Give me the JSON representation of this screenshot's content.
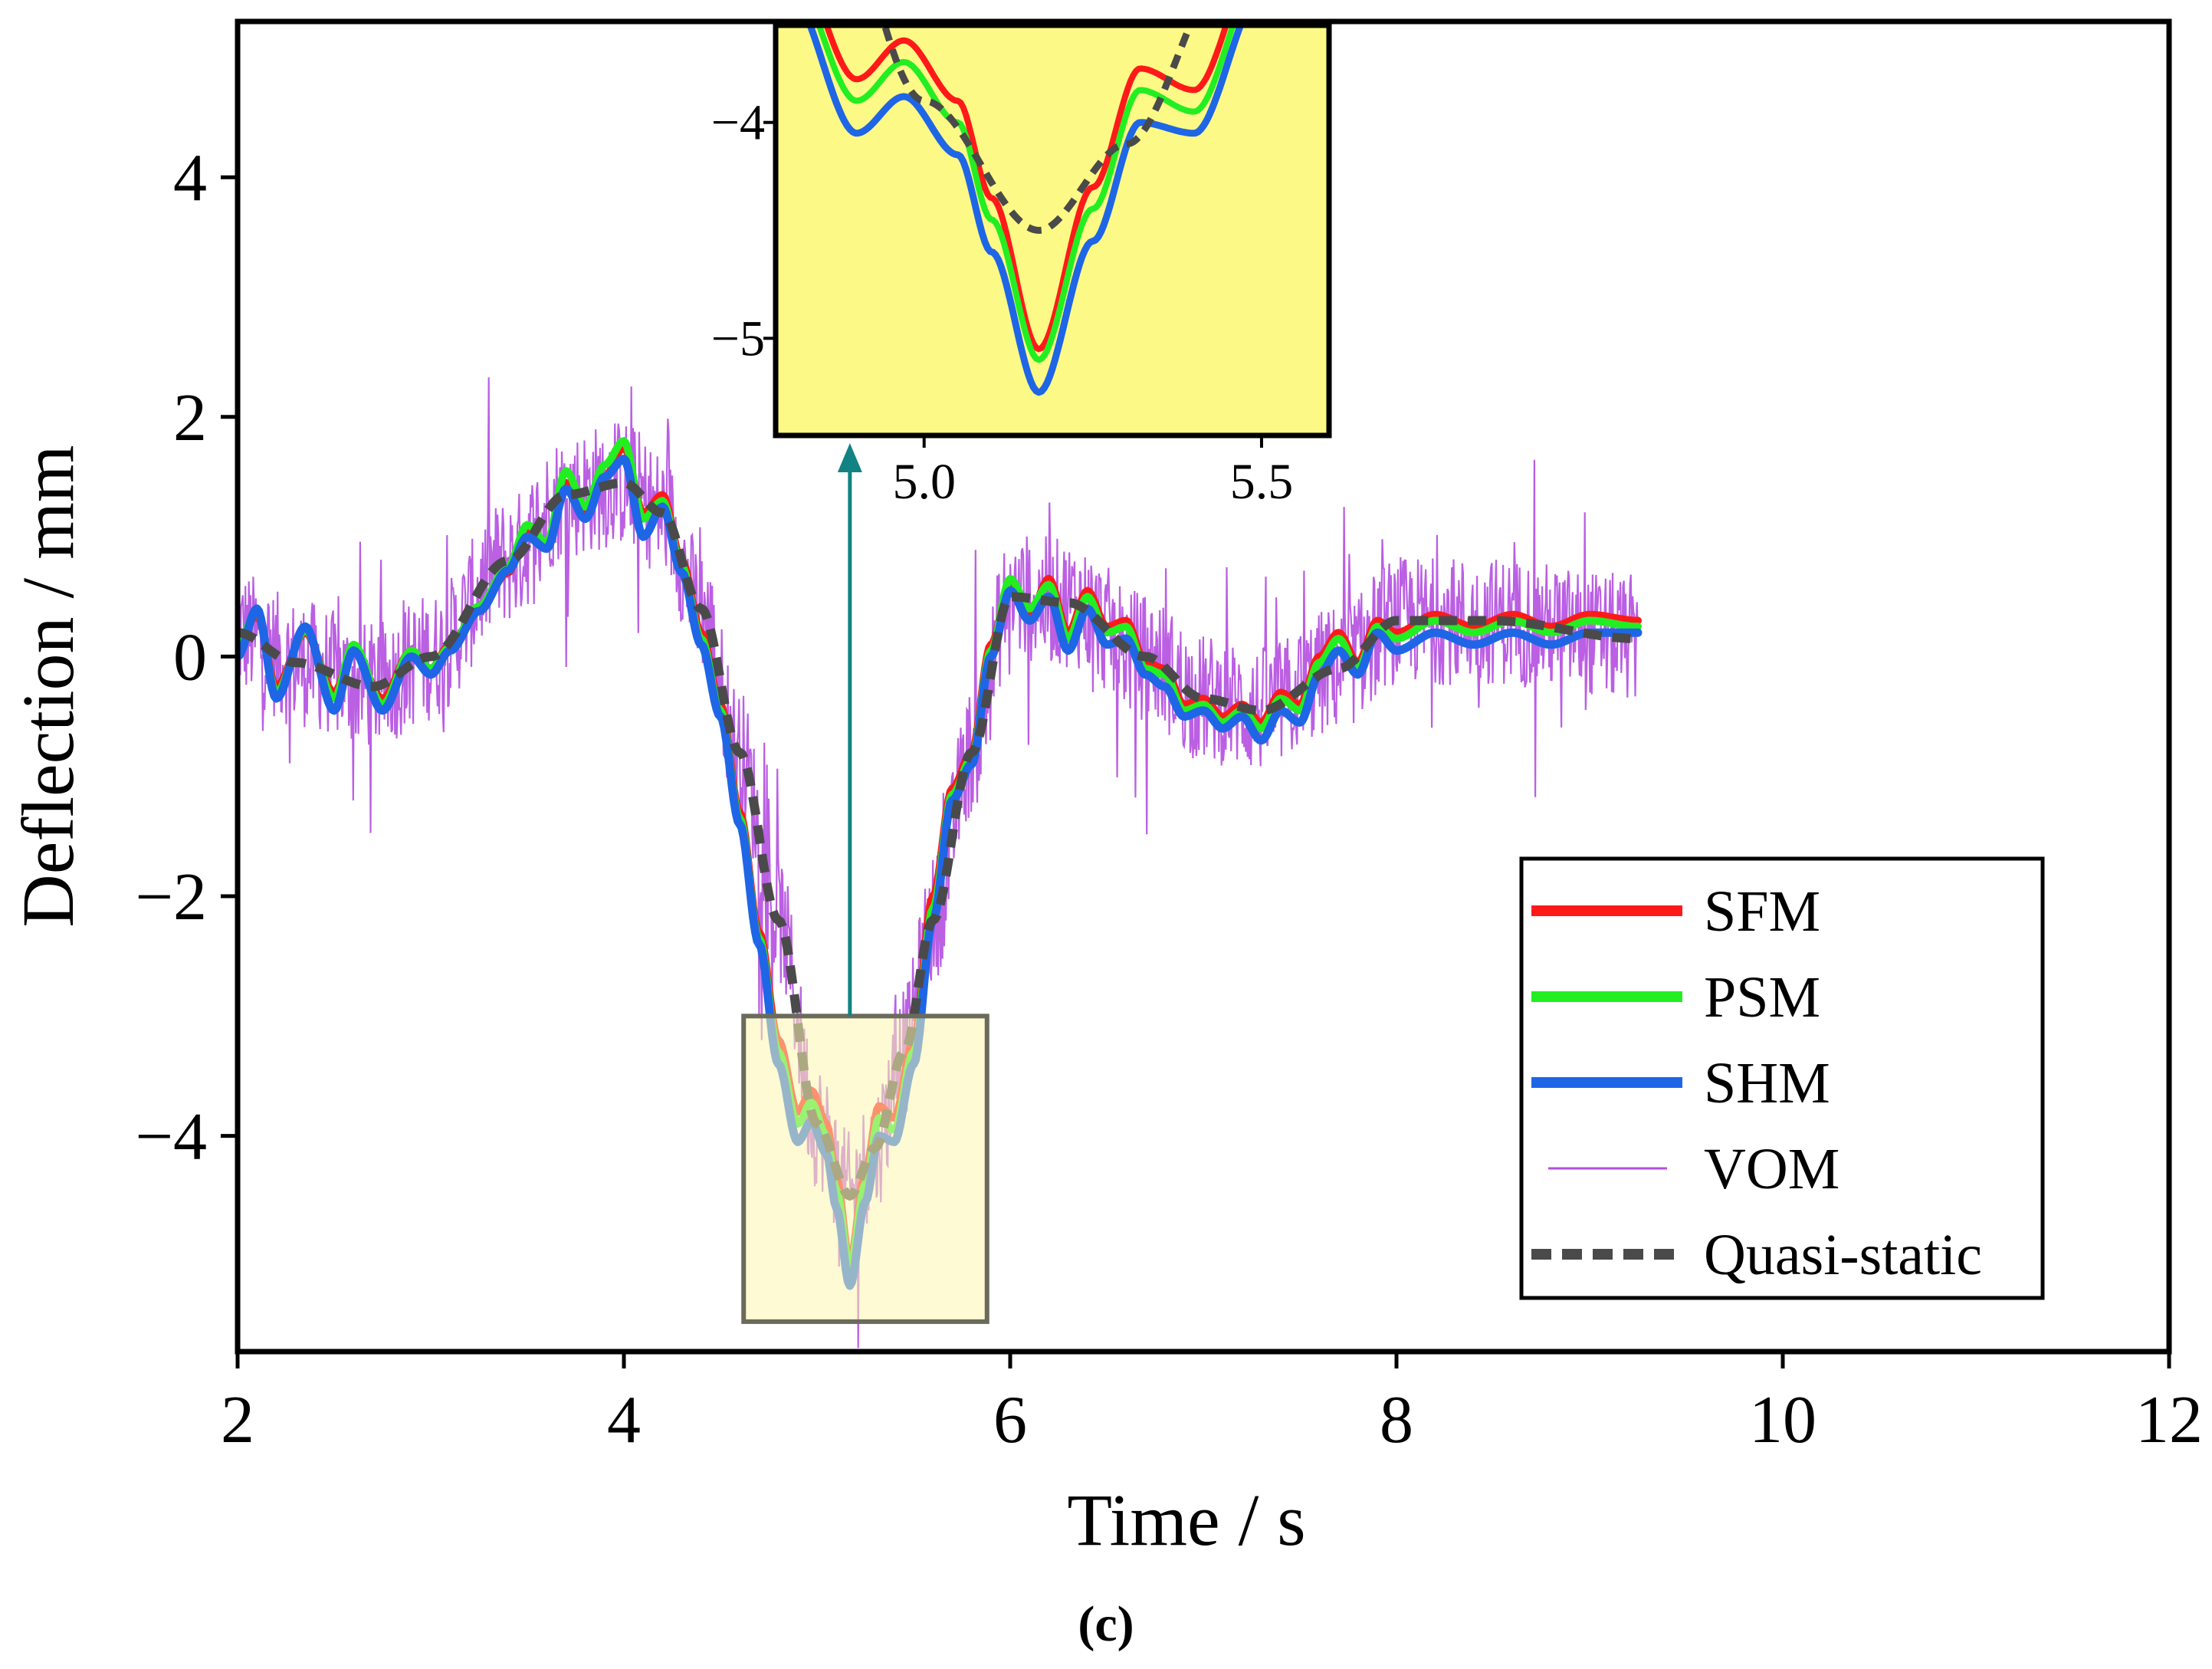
{
  "chart_data": {
    "type": "line",
    "panel_label": "(c)",
    "xlabel": "Time / s",
    "ylabel": "Deflection / mm",
    "xlim": [
      2,
      12
    ],
    "ylim": [
      -5.8,
      5.3
    ],
    "xticks": [
      2,
      4,
      6,
      8,
      10,
      12
    ],
    "yticks": [
      -4,
      -2,
      0,
      2,
      4
    ],
    "xtick_labels": [
      "2",
      "4",
      "6",
      "8",
      "10",
      "12"
    ],
    "ytick_labels": [
      "−4",
      "−2",
      "0",
      "2",
      "4"
    ],
    "grid": false,
    "legend_position": "bottom-right",
    "colors": {
      "SFM": "#ff1a1a",
      "PSM": "#22ee22",
      "SHM": "#1e66e6",
      "VOM": "#b44ee0",
      "Quasi-static": "#4a4a4a",
      "inset_bg": "#fdf986",
      "zoom_box": "#fbf6b0",
      "arrow": "#128282"
    },
    "series": [
      {
        "name": "Quasi-static",
        "style": "dashed",
        "x": [
          2.0,
          2.3,
          2.7,
          3.0,
          3.4,
          3.7,
          4.0,
          4.2,
          4.4,
          4.6,
          4.8,
          5.0,
          5.17,
          5.3,
          5.45,
          5.6,
          5.8,
          6.0,
          6.3,
          6.7,
          7.0,
          7.3,
          7.7,
          8.0,
          8.5,
          9.25
        ],
        "y": [
          0.2,
          -0.05,
          -0.25,
          0.0,
          0.8,
          1.35,
          1.45,
          1.2,
          0.4,
          -0.8,
          -2.2,
          -3.9,
          -4.5,
          -4.1,
          -3.3,
          -2.2,
          -0.8,
          0.5,
          0.45,
          0.0,
          -0.35,
          -0.45,
          -0.1,
          0.3,
          0.3,
          0.15
        ]
      },
      {
        "name": "SFM",
        "style": "solid",
        "x": [
          2.0,
          2.1,
          2.2,
          2.35,
          2.5,
          2.6,
          2.75,
          2.9,
          3.0,
          3.1,
          3.25,
          3.4,
          3.5,
          3.6,
          3.7,
          3.8,
          3.9,
          4.0,
          4.1,
          4.2,
          4.3,
          4.4,
          4.5,
          4.6,
          4.7,
          4.8,
          4.9,
          4.97,
          5.05,
          5.1,
          5.17,
          5.25,
          5.32,
          5.4,
          5.5,
          5.6,
          5.7,
          5.8,
          5.9,
          6.0,
          6.1,
          6.2,
          6.3,
          6.4,
          6.5,
          6.6,
          6.7,
          6.8,
          6.9,
          7.0,
          7.1,
          7.2,
          7.3,
          7.4,
          7.5,
          7.6,
          7.7,
          7.8,
          7.9,
          8.0,
          8.2,
          8.4,
          8.6,
          8.8,
          9.0,
          9.25
        ],
        "y": [
          0.1,
          0.35,
          -0.25,
          0.2,
          -0.3,
          0.05,
          -0.35,
          0.05,
          -0.1,
          0.1,
          0.4,
          0.7,
          1.05,
          0.9,
          1.45,
          1.2,
          1.5,
          1.75,
          1.2,
          1.35,
          0.8,
          0.2,
          -0.4,
          -1.3,
          -2.3,
          -3.2,
          -3.8,
          -3.62,
          -3.9,
          -4.35,
          -5.05,
          -4.3,
          -3.75,
          -3.85,
          -3.2,
          -2.0,
          -1.1,
          -0.8,
          0.1,
          0.6,
          0.35,
          0.65,
          0.2,
          0.55,
          0.25,
          0.3,
          -0.05,
          -0.1,
          -0.4,
          -0.35,
          -0.5,
          -0.4,
          -0.55,
          -0.3,
          -0.4,
          0.0,
          0.2,
          -0.05,
          0.3,
          0.2,
          0.35,
          0.25,
          0.35,
          0.25,
          0.35,
          0.3
        ]
      },
      {
        "name": "PSM",
        "style": "solid",
        "x": [
          2.0,
          2.1,
          2.2,
          2.35,
          2.5,
          2.6,
          2.75,
          2.9,
          3.0,
          3.1,
          3.25,
          3.4,
          3.5,
          3.6,
          3.7,
          3.8,
          3.9,
          4.0,
          4.1,
          4.2,
          4.3,
          4.4,
          4.5,
          4.6,
          4.7,
          4.8,
          4.9,
          4.97,
          5.05,
          5.1,
          5.17,
          5.25,
          5.32,
          5.4,
          5.5,
          5.6,
          5.7,
          5.8,
          5.9,
          6.0,
          6.1,
          6.2,
          6.3,
          6.4,
          6.5,
          6.6,
          6.7,
          6.8,
          6.9,
          7.0,
          7.1,
          7.2,
          7.3,
          7.4,
          7.5,
          7.6,
          7.7,
          7.8,
          7.9,
          8.0,
          8.2,
          8.4,
          8.6,
          8.8,
          9.0,
          9.25
        ],
        "y": [
          0.1,
          0.38,
          -0.3,
          0.22,
          -0.35,
          0.1,
          -0.4,
          0.05,
          -0.1,
          0.08,
          0.42,
          0.75,
          1.1,
          0.95,
          1.55,
          1.25,
          1.6,
          1.8,
          1.15,
          1.3,
          0.75,
          0.15,
          -0.45,
          -1.35,
          -2.35,
          -3.3,
          -3.9,
          -3.72,
          -4.0,
          -4.45,
          -5.1,
          -4.4,
          -3.85,
          -3.95,
          -3.3,
          -2.1,
          -1.15,
          -0.85,
          0.05,
          0.65,
          0.4,
          0.6,
          0.15,
          0.5,
          0.2,
          0.25,
          -0.1,
          -0.15,
          -0.45,
          -0.4,
          -0.55,
          -0.45,
          -0.6,
          -0.35,
          -0.45,
          -0.05,
          0.15,
          -0.1,
          0.25,
          0.15,
          0.3,
          0.2,
          0.3,
          0.2,
          0.3,
          0.25
        ]
      },
      {
        "name": "SHM",
        "style": "solid",
        "x": [
          2.0,
          2.1,
          2.2,
          2.35,
          2.5,
          2.6,
          2.75,
          2.9,
          3.0,
          3.1,
          3.25,
          3.4,
          3.5,
          3.6,
          3.7,
          3.8,
          3.9,
          4.0,
          4.1,
          4.2,
          4.3,
          4.4,
          4.5,
          4.6,
          4.7,
          4.8,
          4.9,
          4.97,
          5.05,
          5.1,
          5.17,
          5.25,
          5.32,
          5.4,
          5.5,
          5.6,
          5.7,
          5.8,
          5.9,
          6.0,
          6.1,
          6.2,
          6.3,
          6.4,
          6.5,
          6.6,
          6.7,
          6.8,
          6.9,
          7.0,
          7.1,
          7.2,
          7.3,
          7.4,
          7.5,
          7.6,
          7.7,
          7.8,
          7.9,
          8.0,
          8.2,
          8.4,
          8.6,
          8.8,
          9.0,
          9.25
        ],
        "y": [
          0.0,
          0.4,
          -0.35,
          0.25,
          -0.45,
          0.05,
          -0.45,
          0.0,
          -0.15,
          0.05,
          0.38,
          0.72,
          1.0,
          0.9,
          1.4,
          1.15,
          1.5,
          1.65,
          1.0,
          1.25,
          0.7,
          0.1,
          -0.5,
          -1.4,
          -2.4,
          -3.4,
          -4.05,
          -3.88,
          -4.15,
          -4.6,
          -5.25,
          -4.55,
          -4.0,
          -4.05,
          -3.4,
          -2.2,
          -1.2,
          -0.9,
          0.0,
          0.55,
          0.3,
          0.5,
          0.05,
          0.4,
          0.1,
          0.15,
          -0.15,
          -0.25,
          -0.5,
          -0.45,
          -0.6,
          -0.5,
          -0.7,
          -0.45,
          -0.55,
          -0.15,
          0.05,
          -0.15,
          0.2,
          0.05,
          0.2,
          0.1,
          0.2,
          0.1,
          0.2,
          0.2
        ]
      },
      {
        "name": "VOM",
        "style": "noisy",
        "x_range": [
          2.0,
          9.25
        ],
        "y_base": "Quasi-static",
        "noise_amplitude": 0.9
      }
    ],
    "inset": {
      "xlim": [
        4.78,
        5.6
      ],
      "ylim": [
        -5.45,
        -3.55
      ],
      "xticks": [
        5.0,
        5.5
      ],
      "yticks": [
        -4,
        -5
      ],
      "xtick_labels": [
        "5.0",
        "5.5"
      ],
      "ytick_labels": [
        "−4",
        "−5"
      ],
      "zoom_region": {
        "x": [
          4.62,
          5.88
        ],
        "y": [
          -5.55,
          -3.0
        ]
      }
    }
  }
}
